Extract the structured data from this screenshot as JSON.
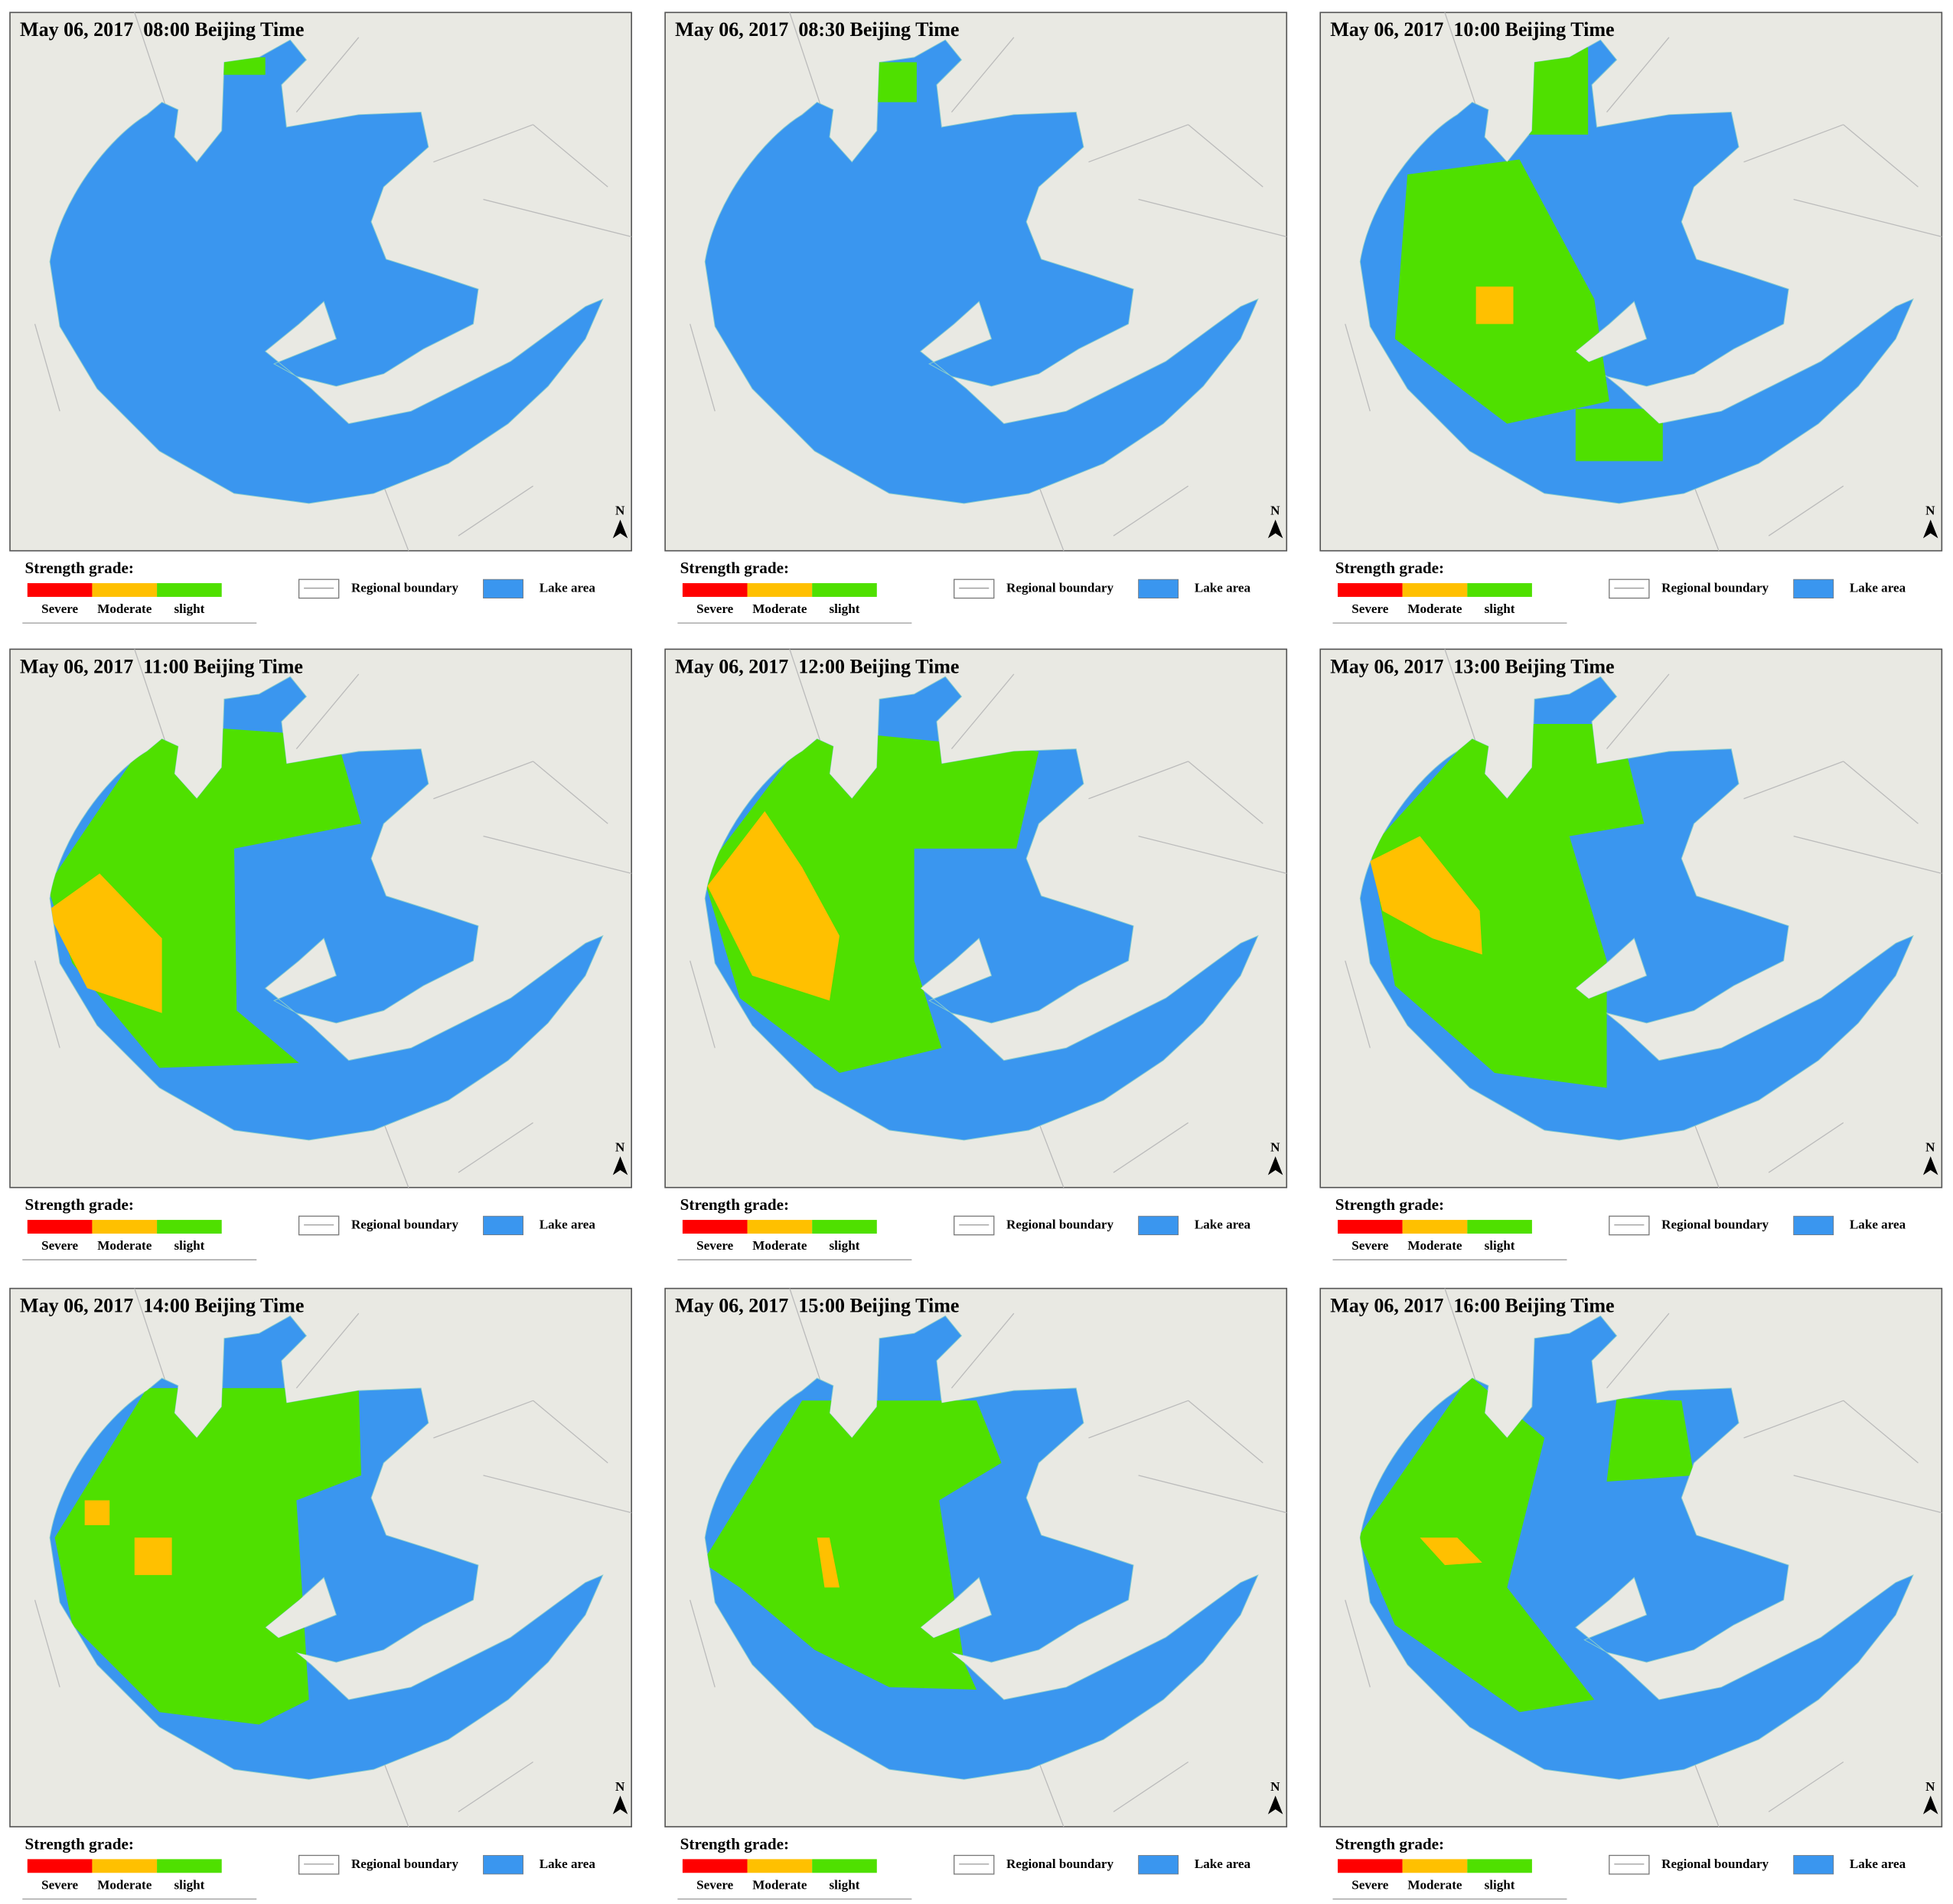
{
  "panels": [
    {
      "title": "May 06, 2017  08:00 Beijing Time"
    },
    {
      "title": "May 06, 2017  08:30 Beijing Time"
    },
    {
      "title": "May 06, 2017  10:00 Beijing Time"
    },
    {
      "title": "May 06, 2017  11:00 Beijing Time"
    },
    {
      "title": "May 06, 2017  12:00 Beijing Time"
    },
    {
      "title": "May 06, 2017  13:00 Beijing Time"
    },
    {
      "title": "May 06, 2017  14:00 Beijing Time"
    },
    {
      "title": "May 06, 2017  15:00 Beijing Time"
    },
    {
      "title": "May 06, 2017  16:00 Beijing Time"
    }
  ],
  "legend": {
    "title": "Strength grade:",
    "grades": [
      "Severe",
      "Moderate",
      "slight"
    ],
    "boundary": "Regional boundary",
    "lake": "Lake area",
    "north": "N"
  }
}
